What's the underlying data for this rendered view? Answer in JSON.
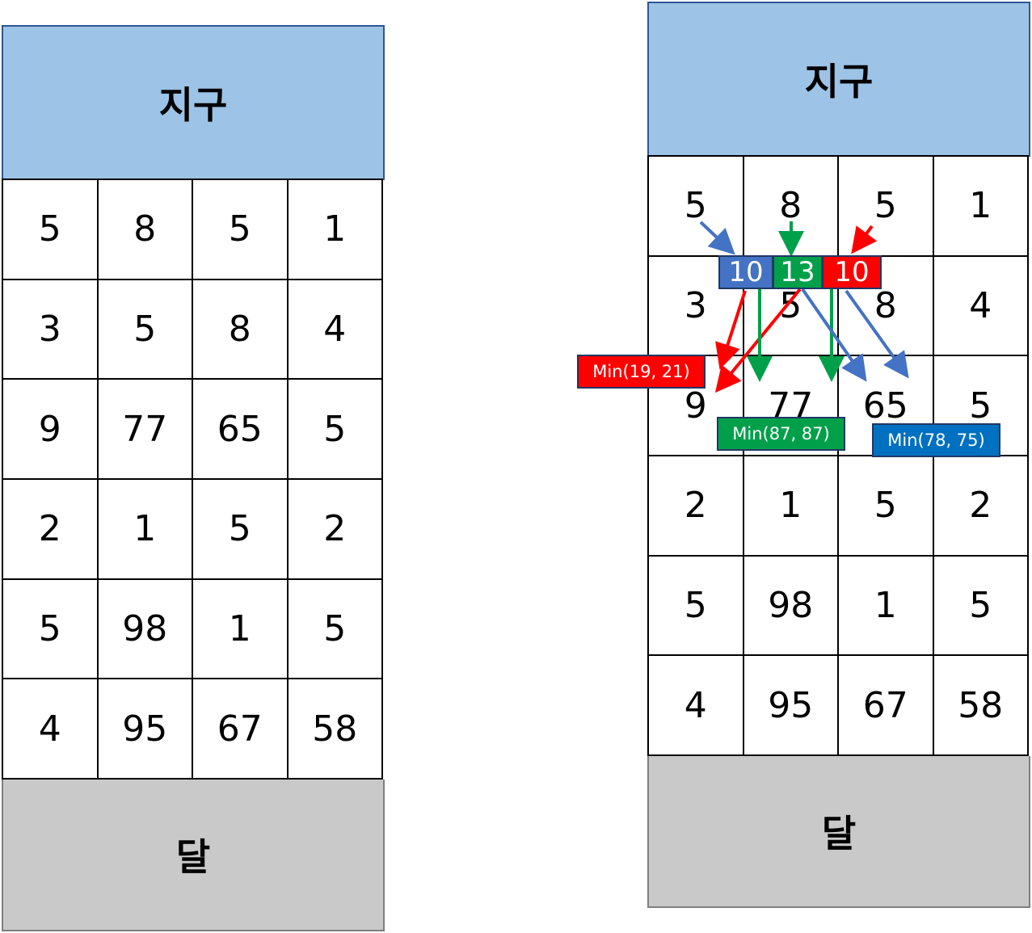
{
  "left": {
    "header": "지구",
    "footer": "달",
    "grid": [
      [
        "5",
        "8",
        "5",
        "1"
      ],
      [
        "3",
        "5",
        "8",
        "4"
      ],
      [
        "9",
        "77",
        "65",
        "5"
      ],
      [
        "2",
        "1",
        "5",
        "2"
      ],
      [
        "5",
        "98",
        "1",
        "5"
      ],
      [
        "4",
        "95",
        "67",
        "58"
      ]
    ]
  },
  "right": {
    "header": "지구",
    "footer": "달",
    "grid": [
      [
        "5",
        "8",
        "5",
        "1"
      ],
      [
        "3",
        "5",
        "8",
        "4"
      ],
      [
        "9",
        "77",
        "65",
        "5"
      ],
      [
        "2",
        "1",
        "5",
        "2"
      ],
      [
        "5",
        "98",
        "1",
        "5"
      ],
      [
        "4",
        "95",
        "67",
        "58"
      ]
    ],
    "dp_values": [
      "10",
      "13",
      "10"
    ],
    "min_labels": {
      "red": "Min(19, 21)",
      "green": "Min(87, 87)",
      "blue": "Min(78, 75)"
    }
  },
  "colors": {
    "blue": "#4472c4",
    "green": "#00a04a",
    "red": "#ff0000",
    "header": "#9dc3e6",
    "footer": "#c9c9c9"
  }
}
